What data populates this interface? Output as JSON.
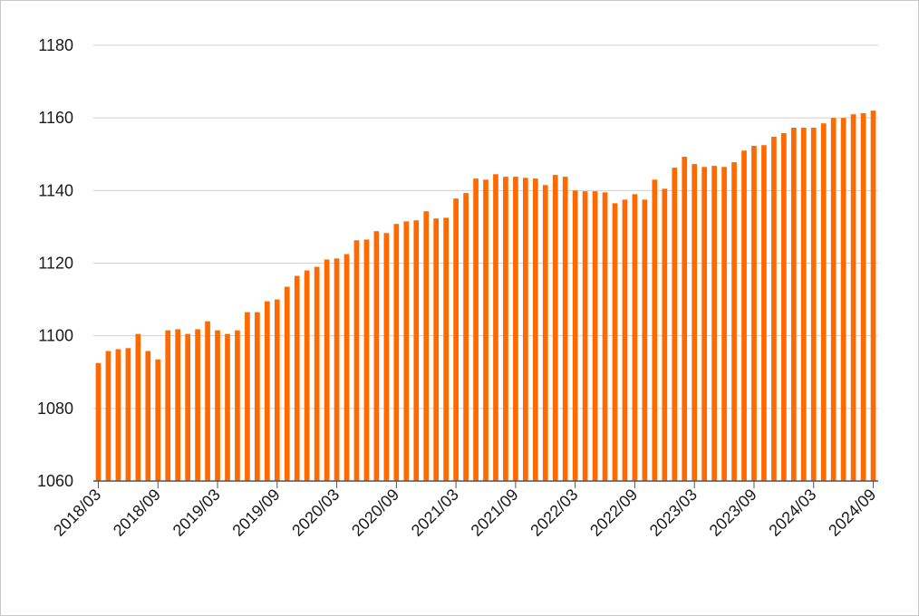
{
  "chart_data": {
    "type": "bar",
    "title": "",
    "xlabel": "",
    "ylabel": "",
    "ylim": [
      1060,
      1180
    ],
    "yticks": [
      1060,
      1080,
      1100,
      1120,
      1140,
      1160,
      1180
    ],
    "grid": true,
    "bar_color": "#ff6a00",
    "x_tick_labels": [
      "2018/03",
      "2018/09",
      "2019/03",
      "2019/09",
      "2020/03",
      "2020/09",
      "2021/03",
      "2021/09",
      "2022/03",
      "2022/09",
      "2023/03",
      "2023/09",
      "2024/03",
      "2024/09"
    ],
    "categories": [
      "2018/03",
      "2018/04",
      "2018/05",
      "2018/06",
      "2018/07",
      "2018/08",
      "2018/09",
      "2018/10",
      "2018/11",
      "2018/12",
      "2019/01",
      "2019/02",
      "2019/03",
      "2019/04",
      "2019/05",
      "2019/06",
      "2019/07",
      "2019/08",
      "2019/09",
      "2019/10",
      "2019/11",
      "2019/12",
      "2020/01",
      "2020/02",
      "2020/03",
      "2020/04",
      "2020/05",
      "2020/06",
      "2020/07",
      "2020/08",
      "2020/09",
      "2020/10",
      "2020/11",
      "2020/12",
      "2021/01",
      "2021/02",
      "2021/03",
      "2021/04",
      "2021/05",
      "2021/06",
      "2021/07",
      "2021/08",
      "2021/09",
      "2021/10",
      "2021/11",
      "2021/12",
      "2022/01",
      "2022/02",
      "2022/03",
      "2022/04",
      "2022/05",
      "2022/06",
      "2022/07",
      "2022/08",
      "2022/09",
      "2022/10",
      "2022/11",
      "2022/12",
      "2023/01",
      "2023/02",
      "2023/03",
      "2023/04",
      "2023/05",
      "2023/06",
      "2023/07",
      "2023/08",
      "2023/09",
      "2023/10",
      "2023/11",
      "2023/12",
      "2024/01",
      "2024/02",
      "2024/03",
      "2024/04",
      "2024/05",
      "2024/06",
      "2024/07",
      "2024/08",
      "2024/09"
    ],
    "values": [
      1092.5,
      1095.8,
      1096.3,
      1096.6,
      1100.5,
      1095.8,
      1093.5,
      1101.5,
      1101.8,
      1100.5,
      1101.8,
      1104.0,
      1101.5,
      1100.5,
      1101.5,
      1106.5,
      1106.5,
      1109.5,
      1110.0,
      1113.5,
      1116.5,
      1118.0,
      1119.0,
      1121.0,
      1121.3,
      1122.5,
      1126.3,
      1126.5,
      1128.8,
      1128.3,
      1130.8,
      1131.5,
      1131.8,
      1134.3,
      1132.3,
      1132.5,
      1137.8,
      1139.3,
      1143.3,
      1143.0,
      1144.5,
      1143.8,
      1143.8,
      1143.5,
      1143.3,
      1141.5,
      1144.3,
      1143.8,
      1140.0,
      1139.8,
      1139.8,
      1139.5,
      1136.5,
      1137.5,
      1139.0,
      1137.5,
      1143.0,
      1140.5,
      1146.3,
      1149.3,
      1147.3,
      1146.5,
      1146.8,
      1146.5,
      1147.8,
      1151.0,
      1152.3,
      1152.5,
      1154.8,
      1155.8,
      1157.3,
      1157.3,
      1157.3,
      1158.5,
      1160.0,
      1160.0,
      1161.0,
      1161.3,
      1162.0
    ]
  }
}
